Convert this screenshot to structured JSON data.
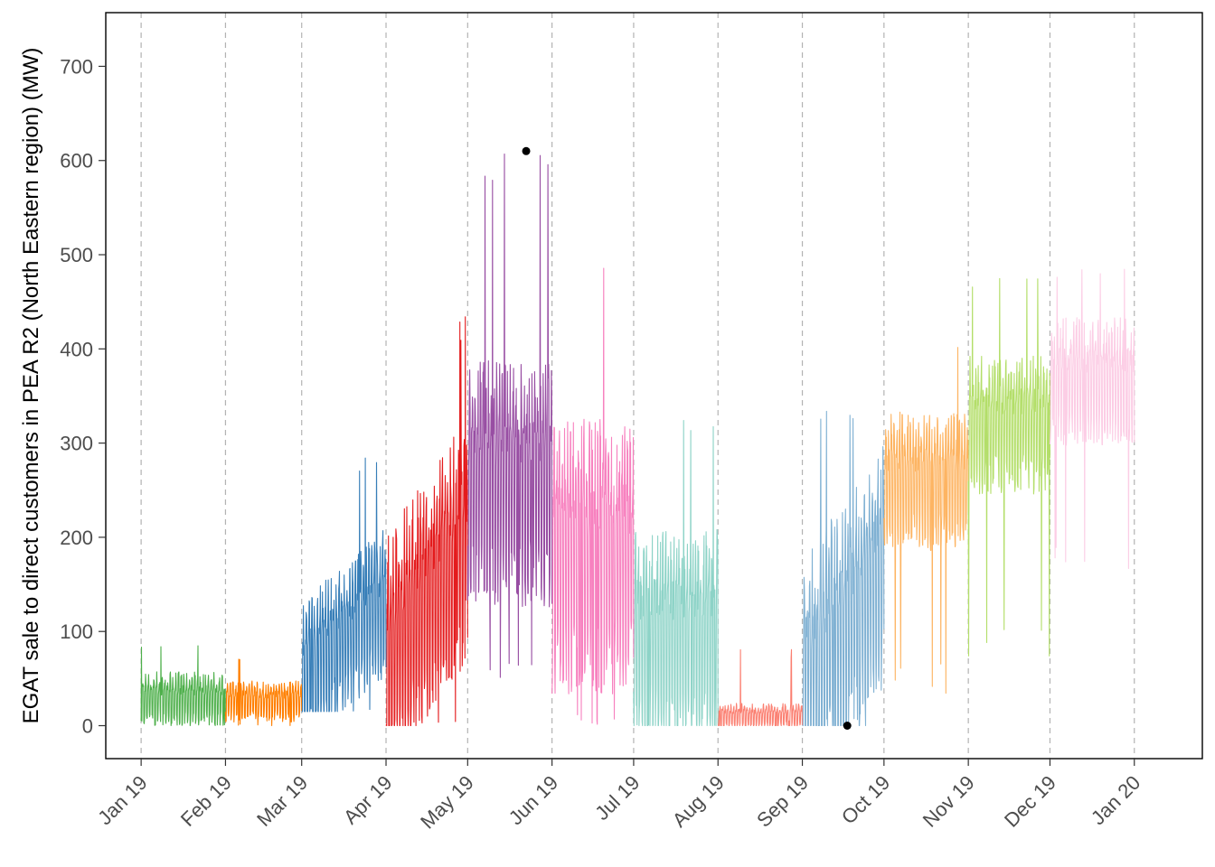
{
  "chart_data": {
    "type": "line",
    "title": "",
    "xlabel": "",
    "ylabel": "EGAT sale to direct customers in PEA R2 (North Eastern region) (MW)",
    "ylim": [
      -35,
      757
    ],
    "x_range": [
      "2018-12-19",
      "2020-01-26"
    ],
    "y_ticks": [
      0,
      100,
      200,
      300,
      400,
      500,
      600,
      700
    ],
    "x_ticks": [
      {
        "date": "2019-01-01",
        "label": "Jan 19"
      },
      {
        "date": "2019-02-01",
        "label": "Feb 19"
      },
      {
        "date": "2019-03-01",
        "label": "Mar 19"
      },
      {
        "date": "2019-04-01",
        "label": "Apr 19"
      },
      {
        "date": "2019-05-01",
        "label": "May 19"
      },
      {
        "date": "2019-06-01",
        "label": "Jun 19"
      },
      {
        "date": "2019-07-01",
        "label": "Jul 19"
      },
      {
        "date": "2019-08-01",
        "label": "Aug 19"
      },
      {
        "date": "2019-09-01",
        "label": "Sep 19"
      },
      {
        "date": "2019-10-01",
        "label": "Oct 19"
      },
      {
        "date": "2019-11-01",
        "label": "Nov 19"
      },
      {
        "date": "2019-12-01",
        "label": "Dec 19"
      },
      {
        "date": "2020-01-01",
        "label": "Jan 20"
      }
    ],
    "grid": "vertical dashed at month starts",
    "series": [
      {
        "month": "2019-01",
        "color": "#4daf4a",
        "min": 0,
        "typical_low": 5,
        "typical_high": 60,
        "max": 87
      },
      {
        "month": "2019-02",
        "color": "#ff7f00",
        "min": 0,
        "typical_low": 8,
        "typical_high": 50,
        "max": 75
      },
      {
        "month": "2019-03",
        "color": "#377eb8",
        "min": 15,
        "typical_low": 30,
        "typical_high": 180,
        "max": 292
      },
      {
        "month": "2019-04",
        "color": "#e41a1c",
        "min": 0,
        "typical_low": 30,
        "typical_high": 280,
        "max": 437
      },
      {
        "month": "2019-05",
        "color": "#984ea3",
        "min": 50,
        "typical_low": 150,
        "typical_high": 400,
        "max": 610
      },
      {
        "month": "2019-06",
        "color": "#f781bf",
        "min": 0,
        "typical_low": 60,
        "typical_high": 340,
        "max": 490
      },
      {
        "month": "2019-07",
        "color": "#8dd3c7",
        "min": 0,
        "typical_low": 5,
        "typical_high": 220,
        "max": 328
      },
      {
        "month": "2019-08",
        "color": "#fb8072",
        "min": 0,
        "typical_low": 0,
        "typical_high": 25,
        "max": 83
      },
      {
        "month": "2019-09",
        "color": "#80b1d3",
        "min": 0,
        "typical_low": 0,
        "typical_high": 250,
        "max": 335
      },
      {
        "month": "2019-10",
        "color": "#fdb462",
        "min": 33,
        "typical_low": 200,
        "typical_high": 340,
        "max": 405
      },
      {
        "month": "2019-11",
        "color": "#b3de69",
        "min": 65,
        "typical_low": 260,
        "typical_high": 400,
        "max": 475
      },
      {
        "month": "2019-12",
        "color": "#fccde5",
        "min": 165,
        "typical_low": 310,
        "typical_high": 440,
        "max": 485
      }
    ],
    "markers": [
      {
        "date": "2019-05-22T12:00",
        "value": 610,
        "kind": "max"
      },
      {
        "date": "2019-09-17T12:00",
        "value": 0,
        "kind": "min"
      }
    ]
  }
}
